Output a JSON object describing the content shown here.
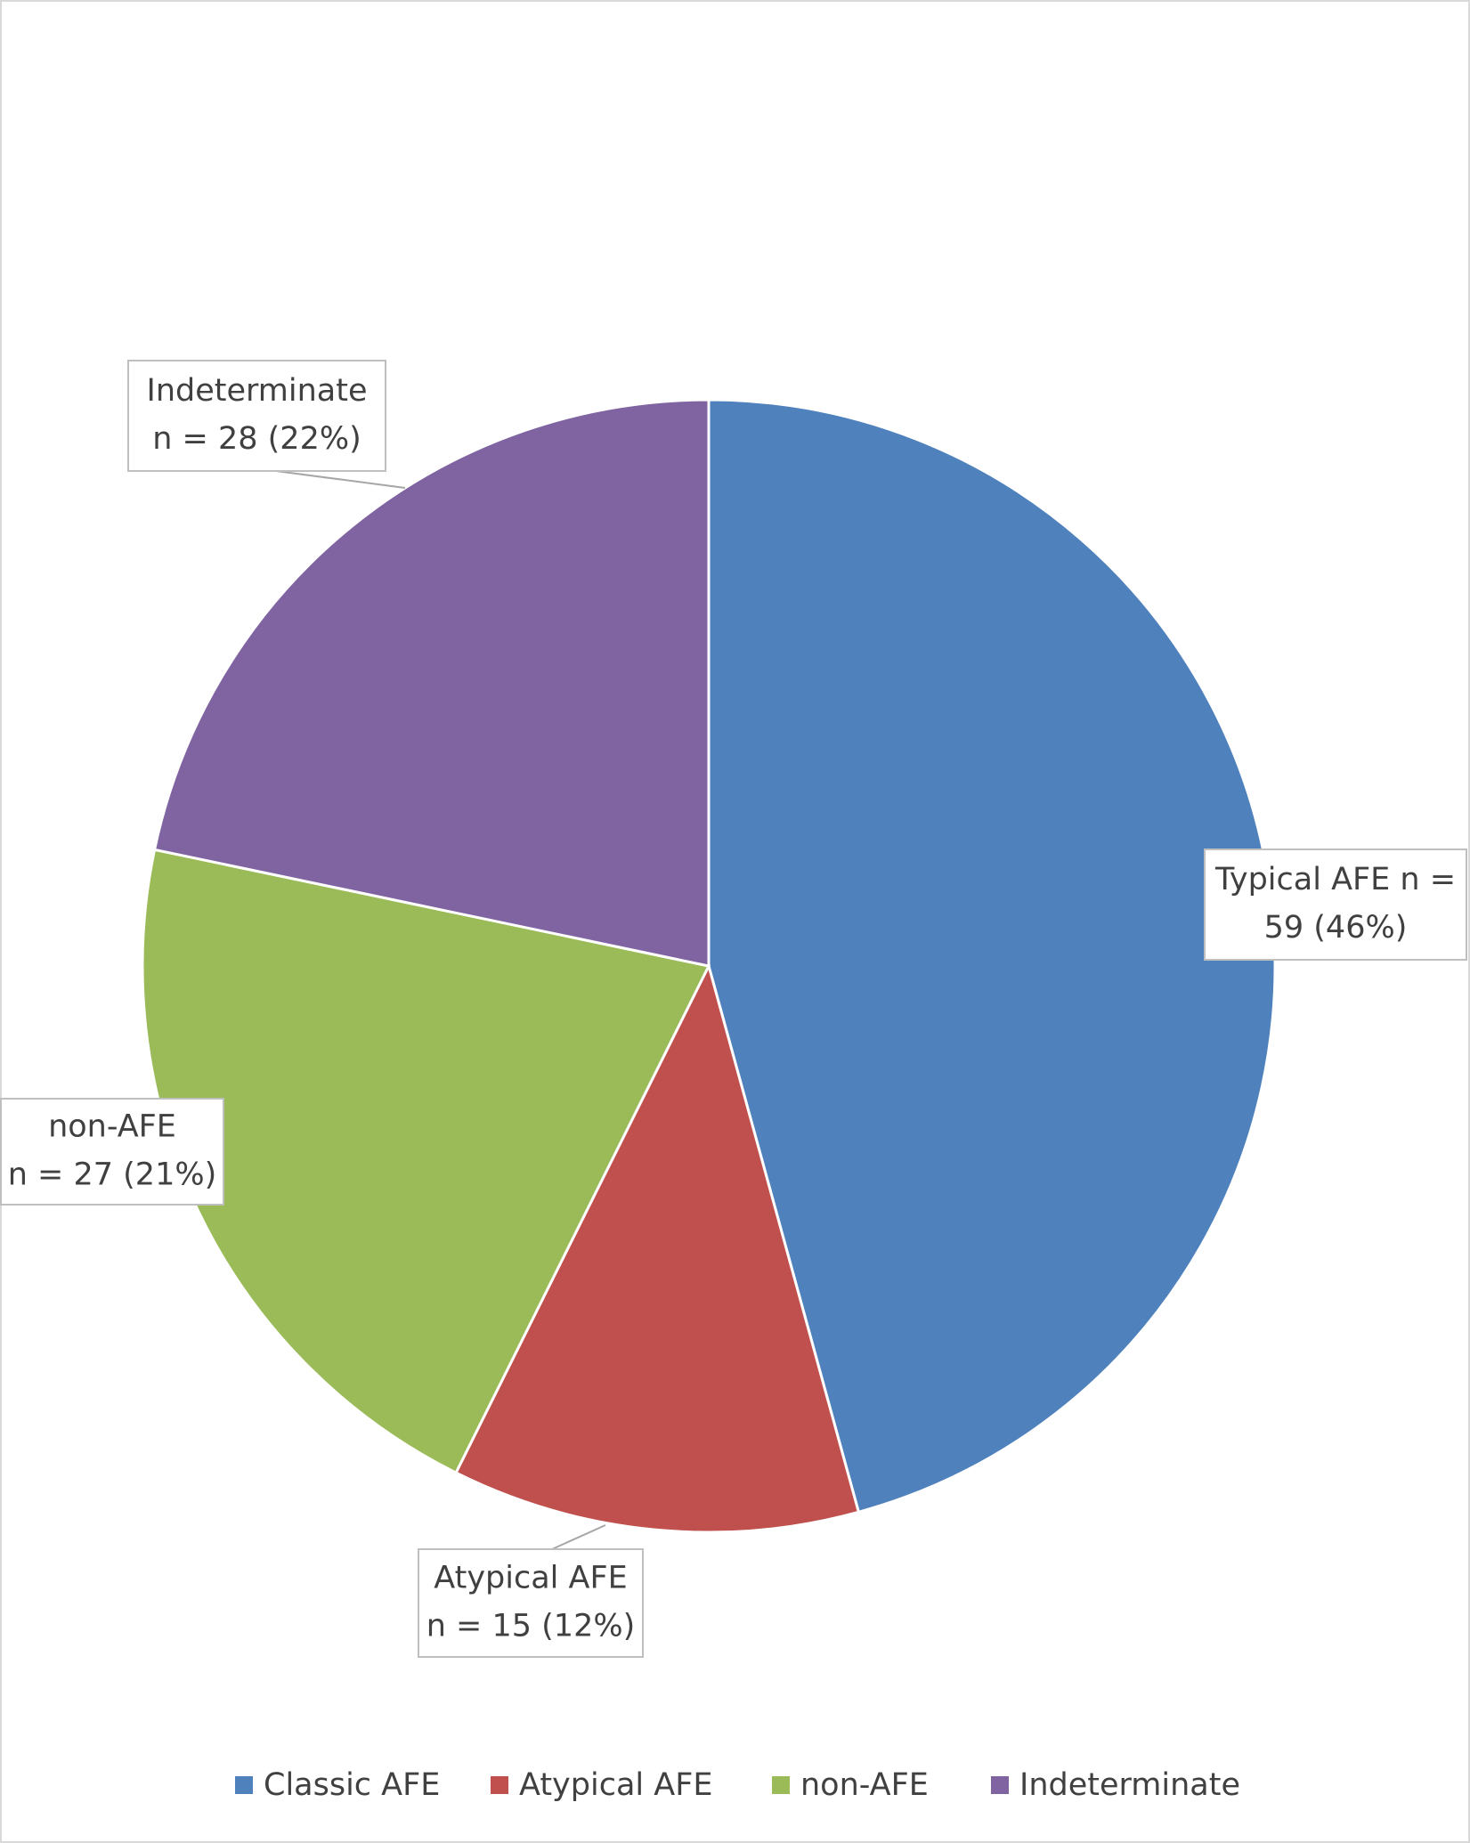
{
  "chart_data": {
    "type": "pie",
    "categories": [
      "Classic AFE",
      "Atypical AFE",
      "non-AFE",
      "Indeterminate"
    ],
    "values": [
      59,
      15,
      27,
      28
    ],
    "value_labels": [
      [
        "Typical AFE n =",
        "59 (46%)"
      ],
      [
        "Atypical AFE",
        "n = 15 (12%)"
      ],
      [
        "non-AFE",
        "n = 27 (21%)"
      ],
      [
        "Indeterminate",
        "n = 28 (22%)"
      ]
    ],
    "colors": [
      "#4f81bd",
      "#c0504d",
      "#9bbb59",
      "#8064a2"
    ],
    "legend": "bottom"
  }
}
